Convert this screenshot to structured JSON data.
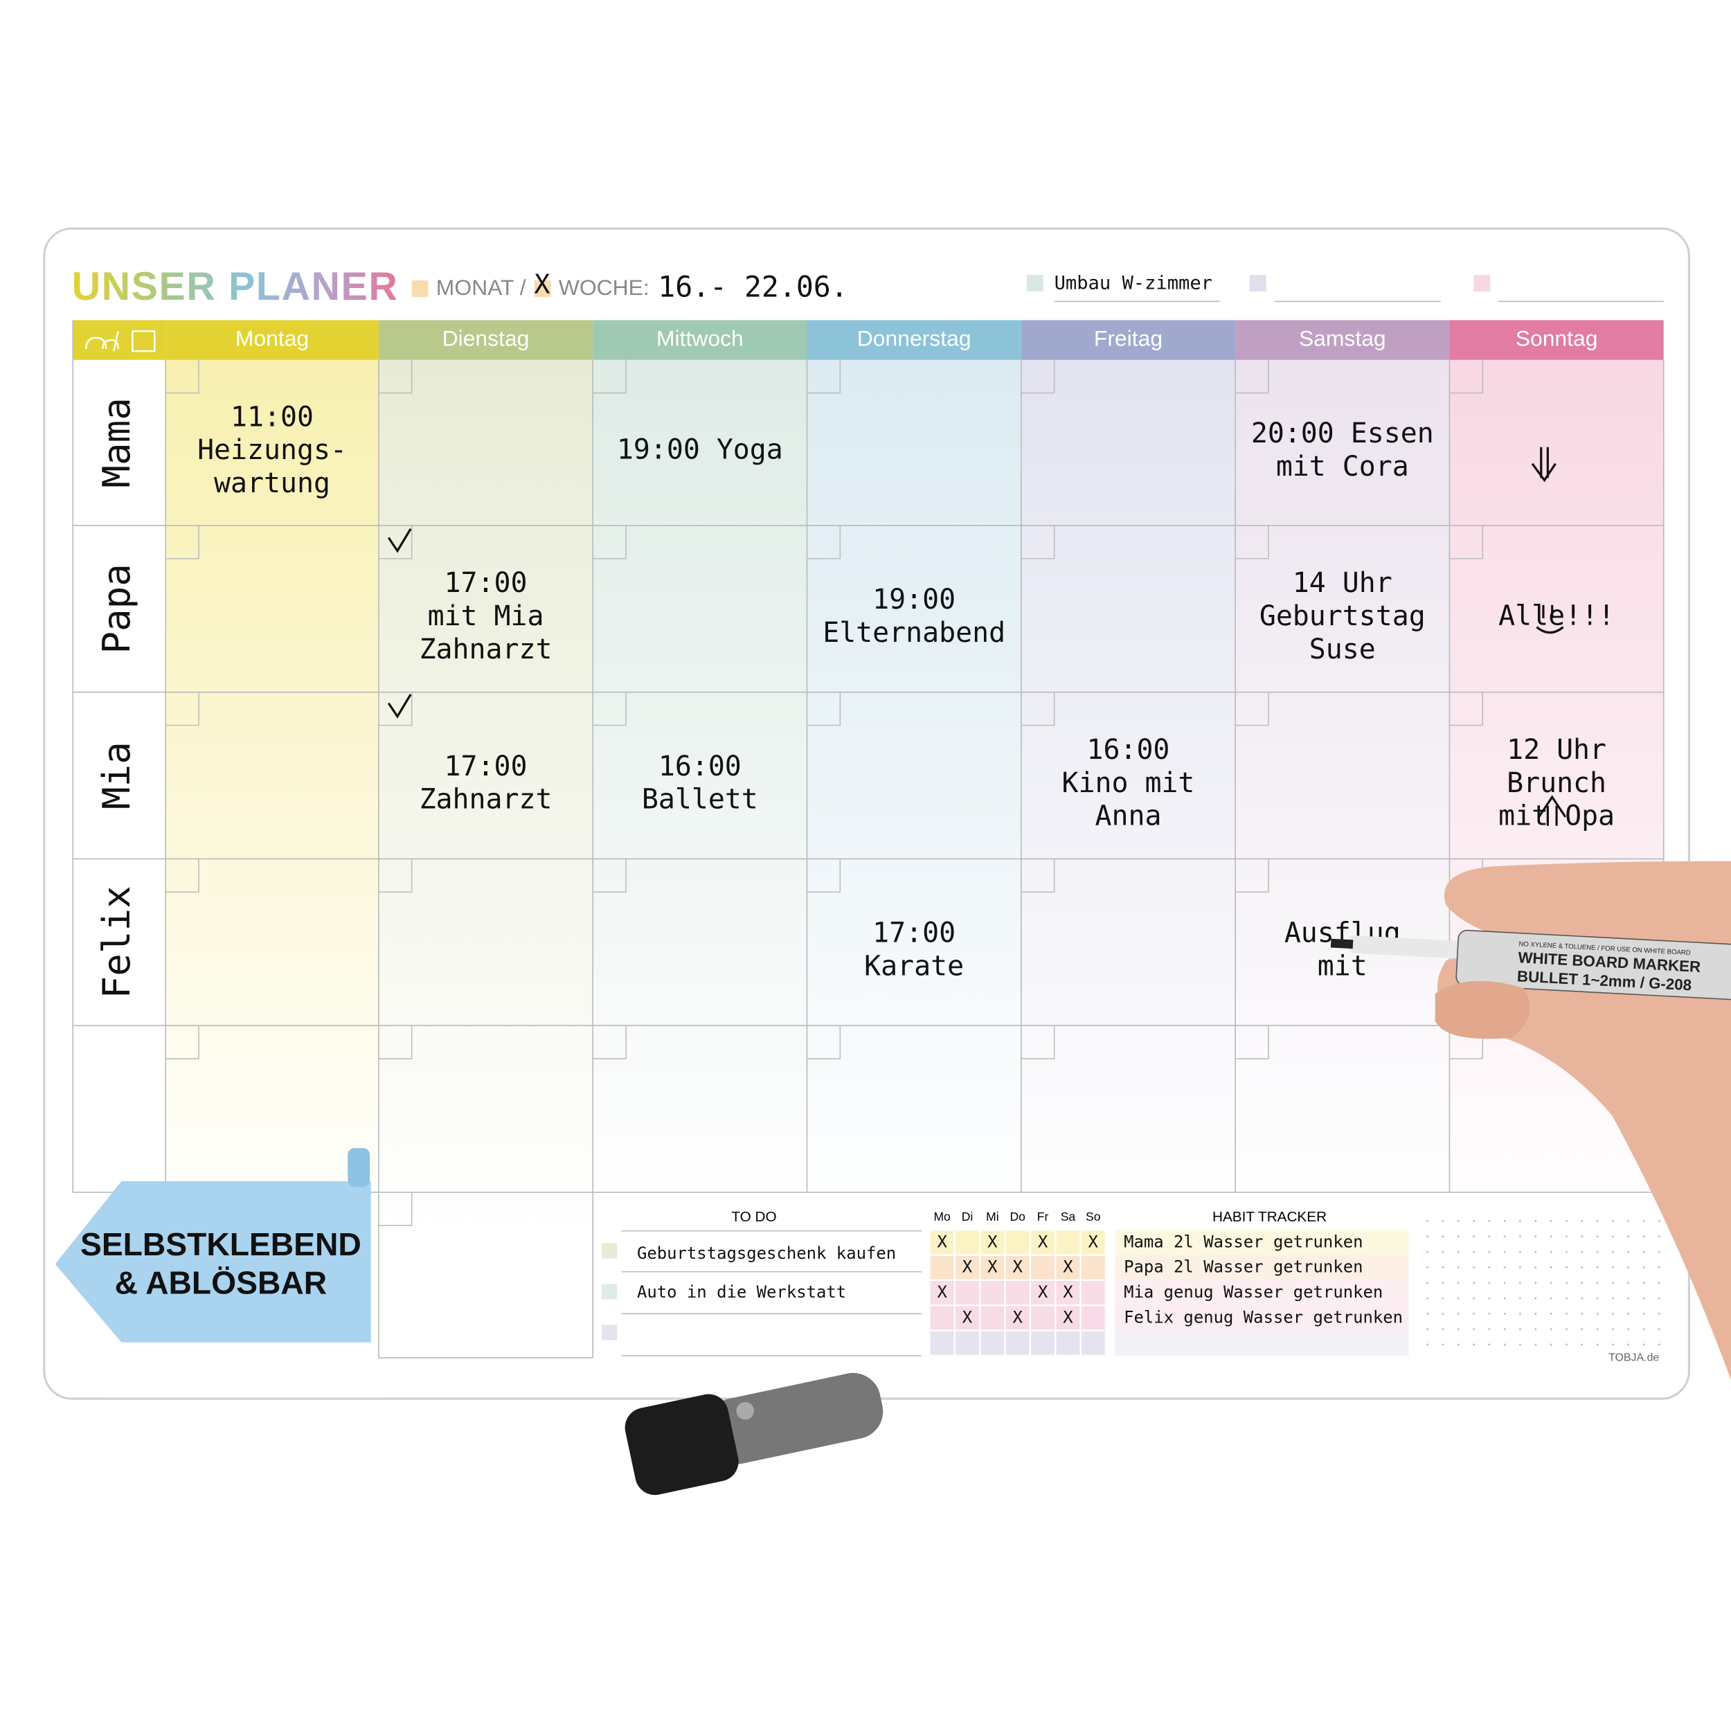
{
  "header": {
    "title": "UNSER PLANER",
    "month_label": "MONAT /",
    "week_mark": "X",
    "week_label": "WOCHE:",
    "week_dates": "16.- 22.06.",
    "notes": [
      "Umbau W-zimmer"
    ]
  },
  "planner": {
    "days": [
      "Montag",
      "Dienstag",
      "Mittwoch",
      "Donnerstag",
      "Freitag",
      "Samstag",
      "Sonntag"
    ],
    "rows": [
      {
        "name": "Mama",
        "cells": [
          "11:00\nHeizungs-\nwartung",
          null,
          "19:00 Yoga",
          null,
          null,
          "20:00 Essen\nmit Cora",
          null
        ]
      },
      {
        "name": "Papa",
        "cells": [
          null,
          "17:00\nmit Mia\nZahnarzt",
          null,
          "19:00\nElternabend",
          null,
          "14 Uhr\nGeburtstag\nSuse",
          "Alle!!!"
        ]
      },
      {
        "name": "Mia",
        "cells": [
          null,
          "17:00\nZahnarzt",
          "16:00\nBallett",
          null,
          "16:00\nKino mit\nAnna",
          null,
          "12 Uhr\nBrunch\nmit Opa"
        ]
      },
      {
        "name": "Felix",
        "cells": [
          null,
          null,
          null,
          "17:00\nKarate",
          null,
          "Ausflug\nmit",
          null
        ]
      }
    ]
  },
  "todo": {
    "title": "TO DO",
    "items": [
      "Geburtstagsgeschenk kaufen",
      "Auto in die Werkstatt"
    ]
  },
  "habit": {
    "title": "HABIT TRACKER",
    "days": [
      "Mo",
      "Di",
      "Mi",
      "Do",
      "Fr",
      "Sa",
      "So"
    ],
    "rows": [
      {
        "text": "Mama 2l Wasser getrunken",
        "marks": [
          "X",
          null,
          "X",
          null,
          "X",
          null,
          "X"
        ]
      },
      {
        "text": "Papa 2l Wasser getrunken",
        "marks": [
          null,
          "X",
          "X",
          "X",
          null,
          "X",
          null
        ]
      },
      {
        "text": "Mia genug Wasser getrunken",
        "marks": [
          "X",
          null,
          null,
          null,
          "X",
          "X",
          null
        ]
      },
      {
        "text": "Felix genug Wasser getrunken",
        "marks": [
          null,
          "X",
          null,
          "X",
          null,
          "X",
          null
        ]
      }
    ]
  },
  "badge": "SELBSTKLEBEND\n& ABLÖSBAR",
  "brand": "TOBJA.de",
  "marker": {
    "top": "NO XYLENE & TOLUENE / FOR USE ON WHITE BOARD",
    "name": "WHITE BOARD MARKER",
    "tip": "BULLET 1~2mm / G-208"
  }
}
